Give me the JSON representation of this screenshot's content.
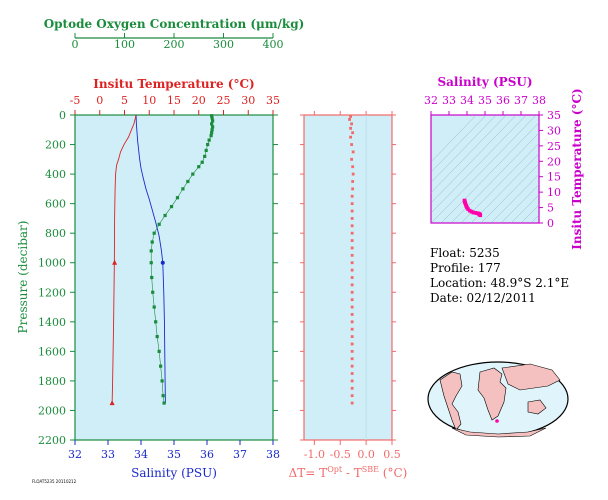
{
  "colors": {
    "panel_fill": "#cfeef8",
    "oxygen": "#1a8c3c",
    "temperature": "#dd2222",
    "salinity": "#1a2acc",
    "delta": "#f26a6a",
    "ts_axis": "#cc00cc",
    "ts_points": "#ff00aa",
    "map_land": "#f5c0c0",
    "map_ocean": "#dff4fb"
  },
  "profile_panel": {
    "oxygen_axis_title": "Optode Oxygen Concentration (μm/kg)",
    "temperature_axis_title": "Insitu Temperature (°C)",
    "salinity_axis_title": "Salinity (PSU)",
    "pressure_axis_title": "Pressure (decibar)",
    "oxygen_ticks": [
      "0",
      "100",
      "200",
      "300",
      "400"
    ],
    "temperature_ticks": [
      "-5",
      "0",
      "5",
      "10",
      "15",
      "20",
      "25",
      "30",
      "35"
    ],
    "salinity_ticks": [
      "32",
      "33",
      "34",
      "35",
      "36",
      "37",
      "38"
    ],
    "pressure_ticks": [
      "0",
      "200",
      "400",
      "600",
      "800",
      "1000",
      "1200",
      "1400",
      "1600",
      "1800",
      "2000",
      "2200"
    ],
    "footer_label": "FLOAT5235 20110212"
  },
  "delta_panel": {
    "axis_title": "ΔT= T^Opt - T^SBE (°C)",
    "title_parts": [
      "ΔT= T",
      "Opt",
      " - T",
      "SBE",
      " (°C)"
    ],
    "ticks": [
      "-1.0",
      "-0.5",
      "0.0",
      "0.5"
    ]
  },
  "ts_panel": {
    "salinity_title": "Salinity (PSU)",
    "temperature_title": "Insitu Temperature (°C)",
    "salinity_ticks": [
      "32",
      "33",
      "34",
      "35",
      "36",
      "37",
      "38"
    ],
    "temperature_ticks": [
      "0",
      "5",
      "10",
      "15",
      "20",
      "25",
      "30",
      "35"
    ]
  },
  "info": {
    "float_line": "Float:  5235",
    "profile_line": "Profile:  177",
    "location_line": "Location:  48.9°S   2.1°E",
    "date_line": "Date:  02/12/2011"
  },
  "chart_data": [
    {
      "type": "line",
      "title": "",
      "ylabel": "Pressure (decibar)",
      "ylim": [
        2200,
        0
      ],
      "y_reversed": true,
      "grid": false,
      "series": [
        {
          "name": "Optode Oxygen Concentration (μm/kg)",
          "xlim": [
            0,
            400
          ],
          "marker": "square",
          "points": [
            [
              276,
              5
            ],
            [
              277,
              20
            ],
            [
              278,
              40
            ],
            [
              276,
              60
            ],
            [
              278,
              80
            ],
            [
              277,
              100
            ],
            [
              276,
              120
            ],
            [
              275,
              140
            ],
            [
              271,
              170
            ],
            [
              268,
              200
            ],
            [
              265,
              240
            ],
            [
              262,
              280
            ],
            [
              257,
              320
            ],
            [
              250,
              350
            ],
            [
              238,
              400
            ],
            [
              228,
              450
            ],
            [
              218,
              500
            ],
            [
              207,
              560
            ],
            [
              195,
              620
            ],
            [
              182,
              680
            ],
            [
              170,
              740
            ],
            [
              160,
              800
            ],
            [
              156,
              860
            ],
            [
              154,
              920
            ],
            [
              154,
              1000
            ],
            [
              155,
              1100
            ],
            [
              157,
              1200
            ],
            [
              160,
              1300
            ],
            [
              163,
              1400
            ],
            [
              166,
              1500
            ],
            [
              170,
              1600
            ],
            [
              173,
              1700
            ],
            [
              176,
              1800
            ],
            [
              178,
              1900
            ],
            [
              180,
              1950
            ]
          ]
        },
        {
          "name": "Insitu Temperature (°C)",
          "xlim": [
            -5,
            35
          ],
          "marker": "line",
          "points": [
            [
              7.3,
              0
            ],
            [
              7.2,
              20
            ],
            [
              6.9,
              60
            ],
            [
              6.4,
              100
            ],
            [
              5.8,
              150
            ],
            [
              4.9,
              200
            ],
            [
              4.2,
              250
            ],
            [
              3.8,
              300
            ],
            [
              3.4,
              340
            ],
            [
              3.2,
              400
            ],
            [
              3.1,
              500
            ],
            [
              3.0,
              700
            ],
            [
              2.95,
              1000
            ],
            [
              2.8,
              1400
            ],
            [
              2.6,
              1800
            ],
            [
              2.5,
              1950
            ]
          ],
          "highlight_points": [
            [
              3.0,
              1000
            ],
            [
              2.5,
              1950
            ]
          ]
        },
        {
          "name": "Salinity (PSU)",
          "xlim": [
            32,
            38
          ],
          "marker": "line",
          "points": [
            [
              33.85,
              0
            ],
            [
              33.86,
              60
            ],
            [
              33.88,
              120
            ],
            [
              33.9,
              180
            ],
            [
              33.93,
              240
            ],
            [
              33.96,
              300
            ],
            [
              34.0,
              360
            ],
            [
              34.06,
              420
            ],
            [
              34.15,
              500
            ],
            [
              34.25,
              570
            ],
            [
              34.35,
              650
            ],
            [
              34.45,
              730
            ],
            [
              34.55,
              820
            ],
            [
              34.62,
              920
            ],
            [
              34.66,
              1000
            ],
            [
              34.69,
              1200
            ],
            [
              34.71,
              1400
            ],
            [
              34.72,
              1600
            ],
            [
              34.73,
              1800
            ],
            [
              34.74,
              1950
            ]
          ],
          "highlight_points": [
            [
              34.66,
              1000
            ]
          ]
        }
      ]
    },
    {
      "type": "scatter",
      "title": "",
      "xlabel": "ΔT= T^Opt - T^SBE (°C)",
      "xlim": [
        -1.2,
        0.5
      ],
      "ylim": [
        2200,
        0
      ],
      "y_reversed": true,
      "series": [
        {
          "name": "",
          "points": [
            [
              -0.3,
              10
            ],
            [
              -0.32,
              30
            ],
            [
              -0.28,
              60
            ],
            [
              -0.3,
              90
            ],
            [
              -0.26,
              120
            ],
            [
              -0.3,
              150
            ],
            [
              -0.28,
              200
            ],
            [
              -0.25,
              250
            ],
            [
              -0.28,
              300
            ],
            [
              -0.26,
              350
            ],
            [
              -0.25,
              400
            ],
            [
              -0.26,
              450
            ],
            [
              -0.26,
              500
            ],
            [
              -0.27,
              550
            ],
            [
              -0.27,
              600
            ],
            [
              -0.27,
              650
            ],
            [
              -0.27,
              700
            ],
            [
              -0.27,
              750
            ],
            [
              -0.27,
              800
            ],
            [
              -0.27,
              850
            ],
            [
              -0.27,
              900
            ],
            [
              -0.27,
              950
            ],
            [
              -0.27,
              1000
            ],
            [
              -0.27,
              1050
            ],
            [
              -0.27,
              1100
            ],
            [
              -0.27,
              1150
            ],
            [
              -0.27,
              1200
            ],
            [
              -0.27,
              1250
            ],
            [
              -0.27,
              1300
            ],
            [
              -0.27,
              1350
            ],
            [
              -0.27,
              1400
            ],
            [
              -0.27,
              1450
            ],
            [
              -0.27,
              1500
            ],
            [
              -0.27,
              1550
            ],
            [
              -0.27,
              1600
            ],
            [
              -0.27,
              1650
            ],
            [
              -0.27,
              1700
            ],
            [
              -0.27,
              1750
            ],
            [
              -0.27,
              1800
            ],
            [
              -0.27,
              1850
            ],
            [
              -0.27,
              1900
            ],
            [
              -0.27,
              1950
            ]
          ]
        }
      ]
    },
    {
      "type": "scatter",
      "title": "",
      "xlabel": "Salinity (PSU)",
      "ylabel": "Insitu Temperature (°C)",
      "xlim": [
        32,
        38
      ],
      "ylim": [
        0,
        35
      ],
      "series": [
        {
          "name": "",
          "points": [
            [
              33.86,
              7.3
            ],
            [
              33.87,
              7.1
            ],
            [
              33.88,
              6.8
            ],
            [
              33.9,
              6.5
            ],
            [
              33.93,
              6.0
            ],
            [
              33.96,
              5.5
            ],
            [
              34.0,
              5.0
            ],
            [
              34.06,
              4.5
            ],
            [
              34.15,
              4.0
            ],
            [
              34.25,
              3.7
            ],
            [
              34.35,
              3.4
            ],
            [
              34.45,
              3.3
            ],
            [
              34.55,
              3.2
            ],
            [
              34.62,
              3.1
            ],
            [
              34.66,
              3.0
            ],
            [
              34.69,
              2.9
            ],
            [
              34.71,
              2.8
            ],
            [
              34.73,
              2.6
            ],
            [
              34.74,
              2.5
            ]
          ]
        }
      ]
    }
  ]
}
